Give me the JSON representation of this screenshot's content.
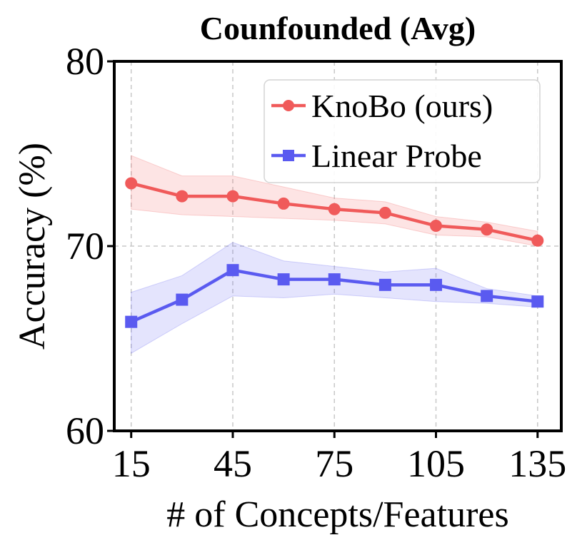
{
  "chart_data": {
    "type": "line",
    "title": "Counfounded (Avg)",
    "xlabel": "# of Concepts/Features",
    "ylabel": "Accuracy (%)",
    "x": [
      15,
      30,
      45,
      60,
      75,
      90,
      105,
      120,
      135
    ],
    "xticks": [
      15,
      45,
      75,
      105,
      135
    ],
    "yticks": [
      60,
      70,
      80
    ],
    "xlim": [
      10,
      142
    ],
    "ylim": [
      60,
      80
    ],
    "grid": true,
    "legend_position": "top-right",
    "series": [
      {
        "name": "KnoBo (ours)",
        "color": "#f05a5a",
        "marker": "circle",
        "values": [
          73.4,
          72.7,
          72.7,
          72.3,
          72.0,
          71.8,
          71.1,
          70.9,
          70.3
        ],
        "lower": [
          72.0,
          71.7,
          71.6,
          71.5,
          71.4,
          71.2,
          70.6,
          70.5,
          70.0
        ],
        "upper": [
          74.9,
          73.8,
          73.8,
          73.2,
          72.6,
          72.4,
          71.6,
          71.3,
          70.8
        ]
      },
      {
        "name": "Linear Probe",
        "color": "#5a5af0",
        "marker": "square",
        "values": [
          65.9,
          67.1,
          68.7,
          68.2,
          68.2,
          67.9,
          67.9,
          67.3,
          67.0
        ],
        "lower": [
          64.2,
          65.8,
          67.3,
          67.2,
          67.4,
          67.2,
          67.0,
          66.9,
          66.7
        ],
        "upper": [
          67.5,
          68.4,
          70.2,
          69.2,
          68.9,
          68.6,
          68.8,
          67.7,
          67.3
        ]
      }
    ]
  }
}
